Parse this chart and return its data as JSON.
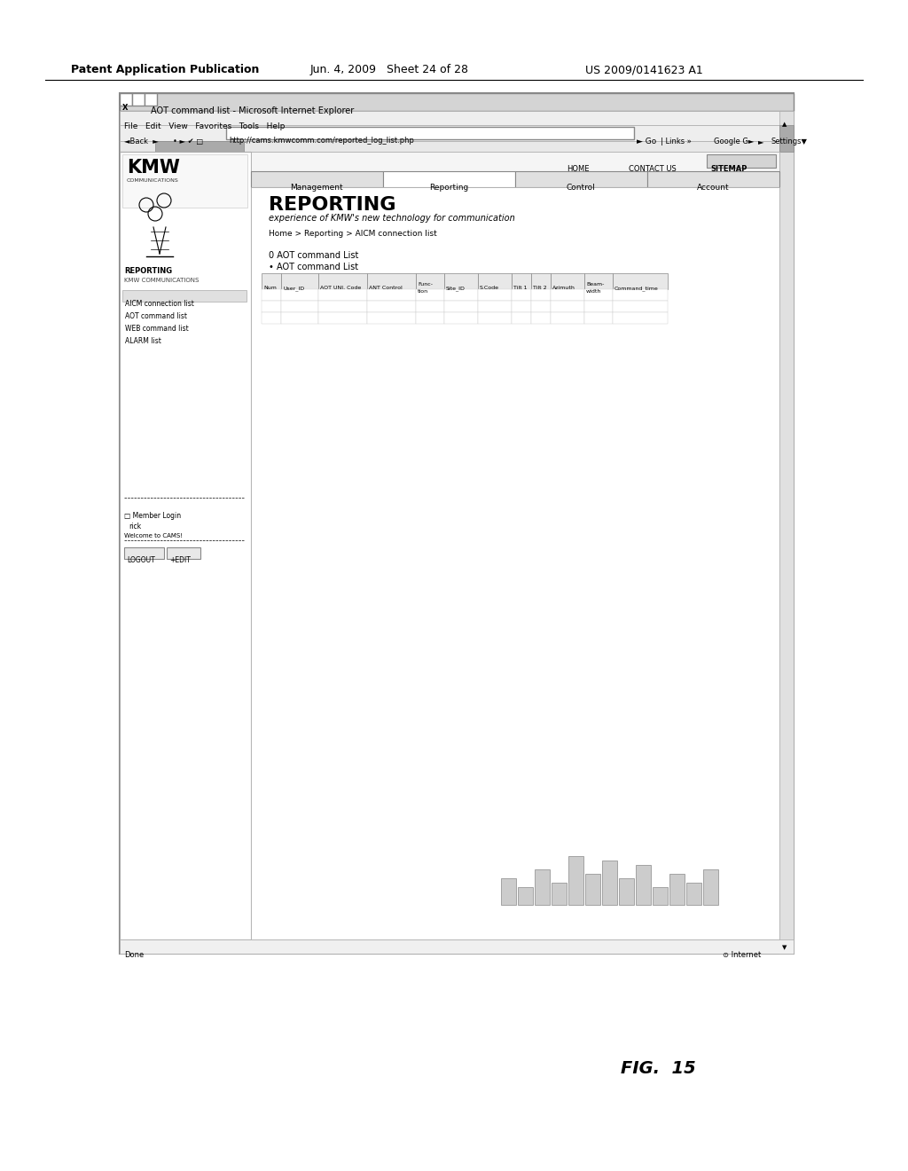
{
  "background_color": "#ffffff",
  "header_text_left": "Patent Application Publication",
  "header_text_mid": "Jun. 4, 2009   Sheet 24 of 28",
  "header_text_right": "US 2009/0141623 A1",
  "figure_label": "FIG.  15",
  "browser_title": "AOT command list - Microsoft Internet Explorer",
  "browser_menu": "File   Edit   View   Favorites   Tools   Help",
  "browser_address": "http://cams.kmwcomm.com/reported_log_list.php",
  "browser_settings": "Settings",
  "page_title": "REPORTING",
  "page_subtitle": "experience of KMW's new technology for communication",
  "nav_home": "HOME",
  "nav_contact": "CONTACT US",
  "nav_sitemap": "SITEMAP",
  "nav_items": [
    "Management",
    "Reporting",
    "Control",
    "Account"
  ],
  "breadcrumb": "Home > Reporting > AICM connection list",
  "left_menu_company": "KMW",
  "left_menu_sub": "COMMUNICATIONS",
  "left_menu_section": "REPORTING",
  "left_menu_section2": "KMW COMMUNICATIONS",
  "left_menu_items": [
    "AICM connection list",
    "AOT command list",
    "WEB command list",
    "ALARM list"
  ],
  "left_menu_login": "□ Member Login",
  "left_menu_nick": "rick",
  "left_menu_welcome": "Welcome to CAMS!",
  "left_menu_logout": "LOGOUT",
  "left_menu_edit": "+EDIT",
  "table1_title": "0 AOT command List",
  "table1_bullet": "• AOT command List",
  "table1_headers": [
    "Num",
    "User_ID",
    "AOT UNI. Code",
    "ANT Control",
    "Func-\ntion",
    "Site_ID",
    "S.Code",
    "Tilt 1",
    "Tilt 2",
    "Azimuth",
    "Beam-\nwidth",
    "Command_time"
  ],
  "status_bar": "Done",
  "status_internet": "Internet",
  "city_bar_heights": [
    30,
    20,
    40,
    25,
    55,
    35,
    50,
    30,
    45,
    20,
    35,
    25,
    40
  ],
  "tower_lines": [
    [
      38,
      85,
      45,
      115
    ],
    [
      52,
      85,
      45,
      115
    ]
  ],
  "antenna_circles": [
    [
      30,
      60
    ],
    [
      50,
      55
    ],
    [
      40,
      70
    ]
  ]
}
